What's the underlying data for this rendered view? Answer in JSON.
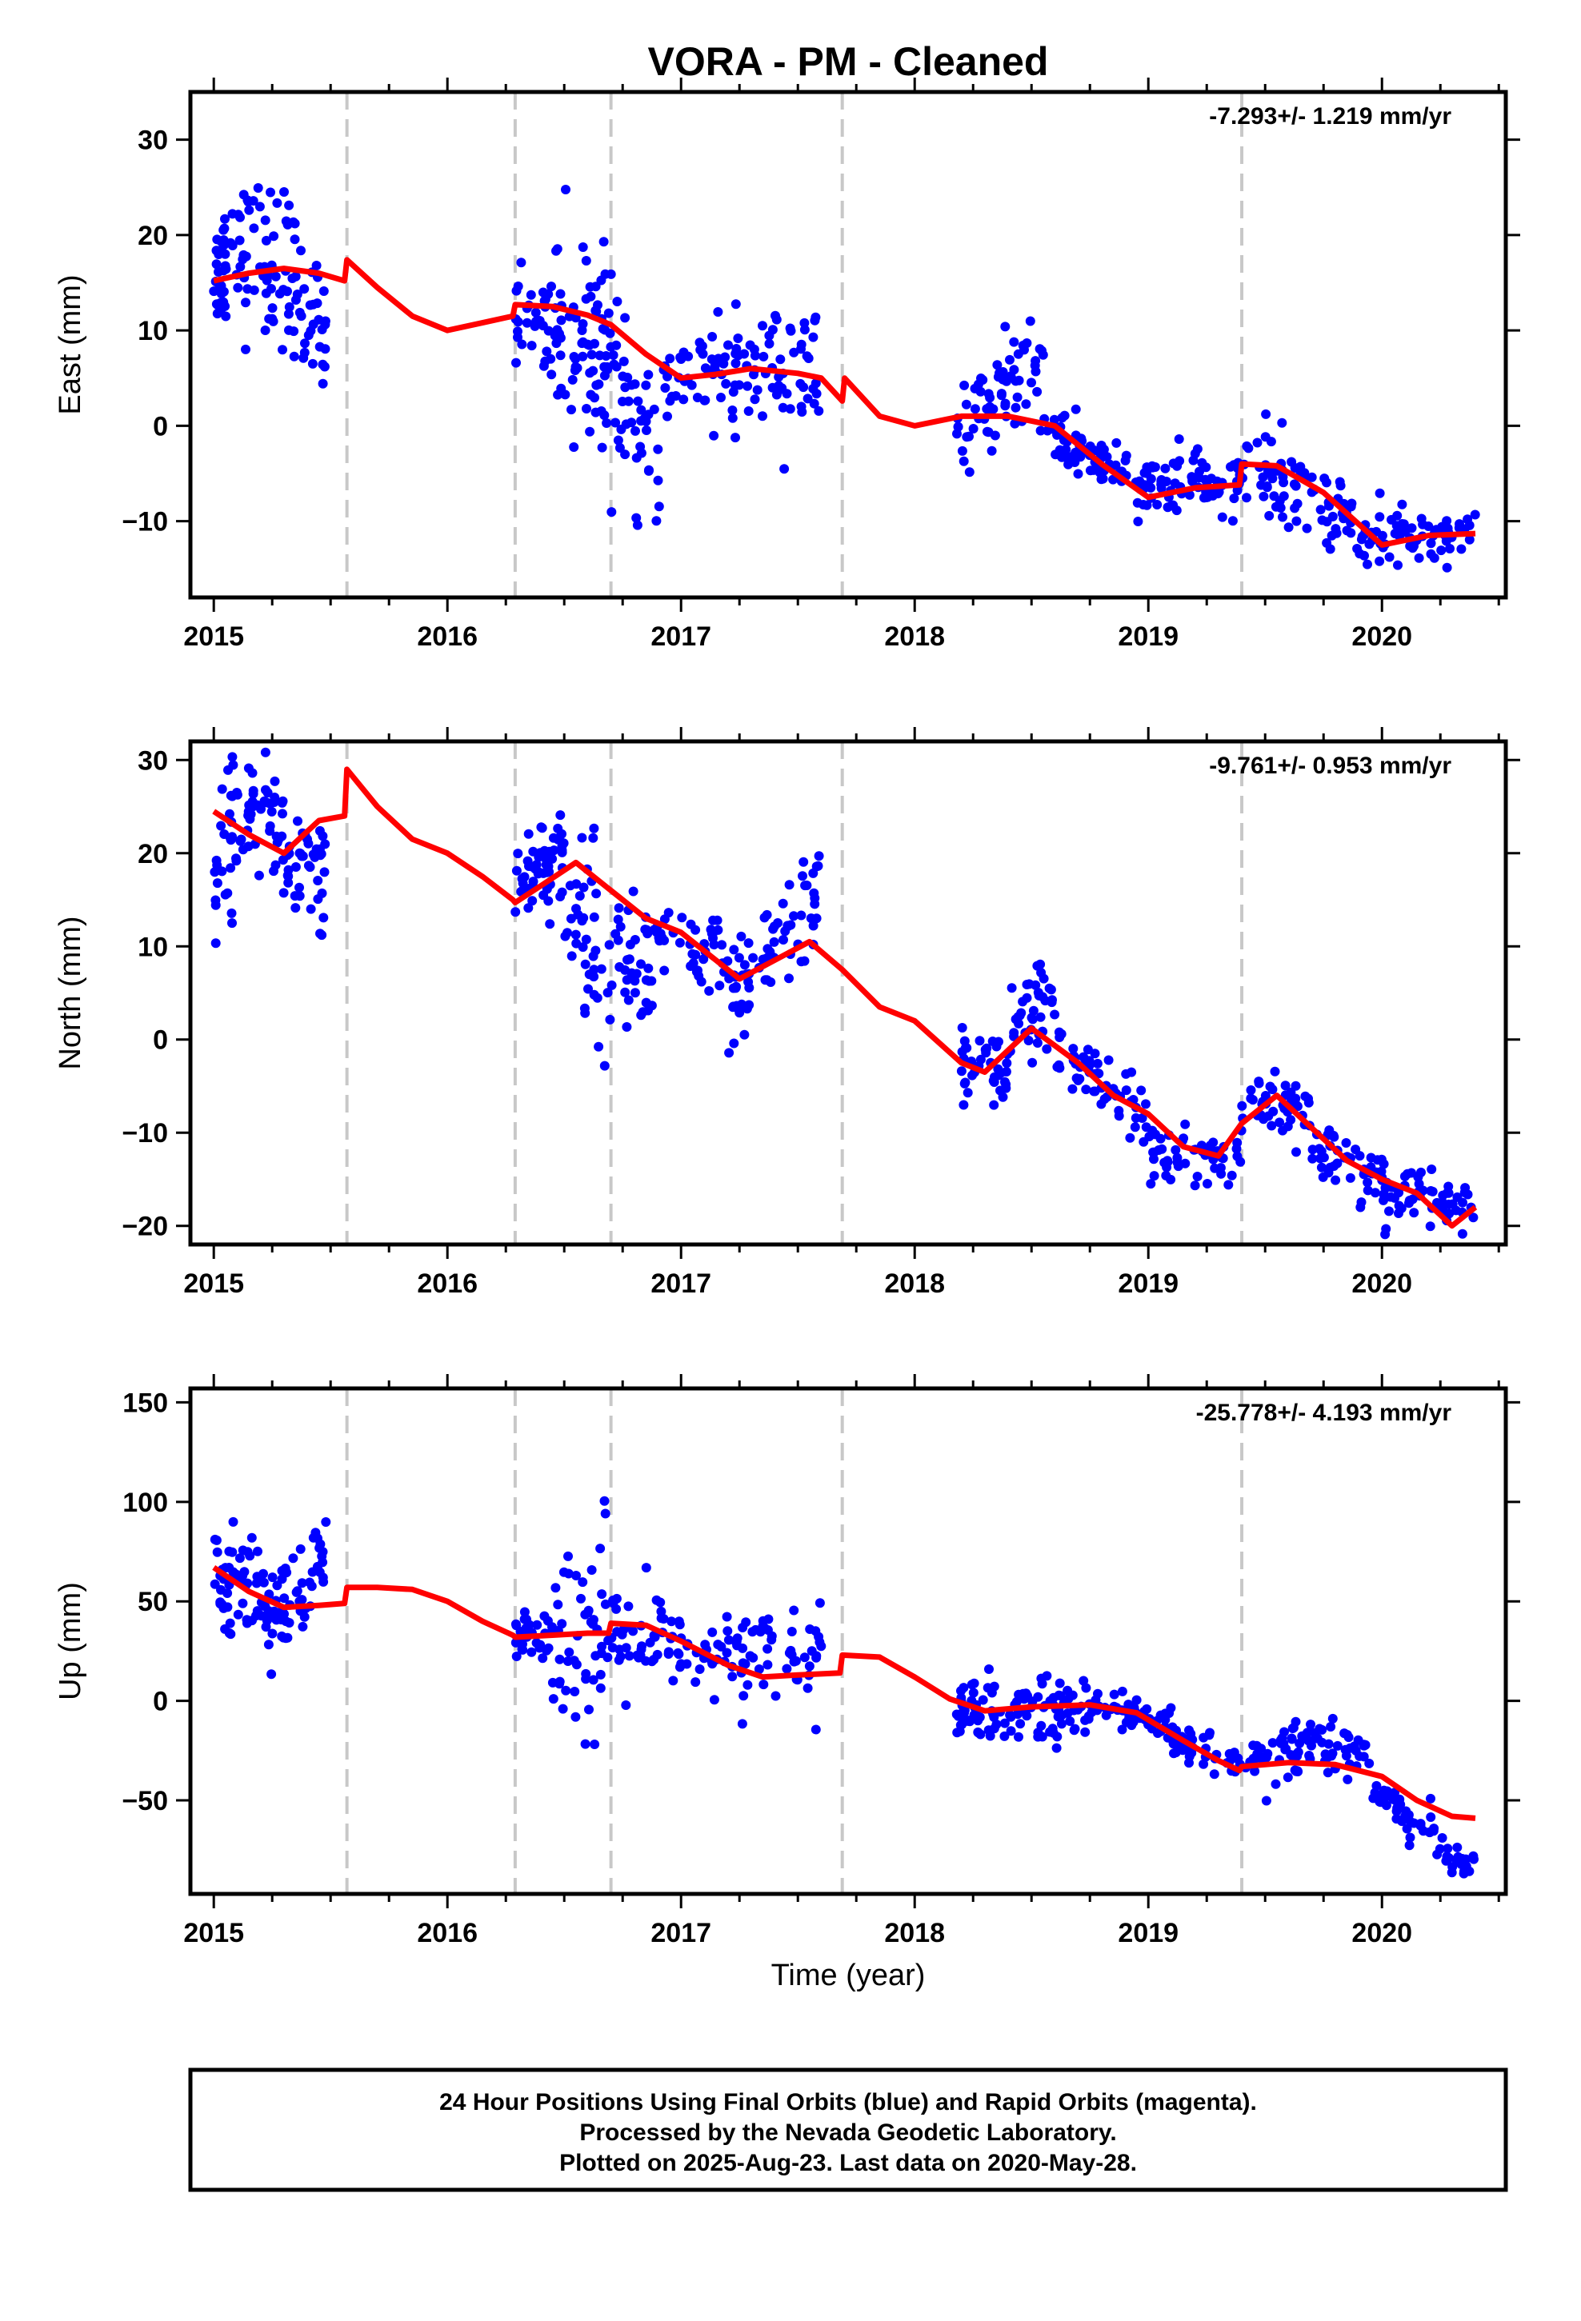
{
  "title": "VORA  - PM - Cleaned",
  "x_axis_label": "Time (year)",
  "footer": {
    "lines": [
      "24 Hour Positions Using Final Orbits (blue) and Rapid Orbits (magenta).",
      "Processed by the Nevada Geodetic Laboratory.",
      "Plotted on 2025-Aug-23. Last data on 2020-May-28."
    ]
  },
  "colors": {
    "observations": "#0000ff",
    "model": "#ff0000",
    "break_lines": "#c8c8c8",
    "frame": "#000000"
  },
  "chart_data": [
    {
      "type": "scatter",
      "component": "East",
      "ylabel": "East (mm)",
      "rate_text": "-7.293+/- 1.219 mm/yr",
      "xlim": [
        2014.9,
        2020.53
      ],
      "ylim": [
        -18,
        35
      ],
      "xticks": [
        2015,
        2016,
        2017,
        2018,
        2019,
        2020
      ],
      "yticks": [
        -10,
        0,
        10,
        20,
        30
      ],
      "break_lines": [
        2015.57,
        2016.29,
        2016.7,
        2017.69,
        2019.4
      ],
      "grid": false,
      "model_line": [
        [
          2015.0,
          15.2
        ],
        [
          2015.15,
          16.0
        ],
        [
          2015.3,
          16.5
        ],
        [
          2015.45,
          16.0
        ],
        [
          2015.56,
          15.2
        ],
        [
          2015.57,
          17.4
        ],
        [
          2015.7,
          14.5
        ],
        [
          2015.85,
          11.5
        ],
        [
          2016.0,
          10.0
        ],
        [
          2016.15,
          10.8
        ],
        [
          2016.28,
          11.5
        ],
        [
          2016.29,
          12.7
        ],
        [
          2016.45,
          12.5
        ],
        [
          2016.6,
          11.6
        ],
        [
          2016.7,
          10.6
        ],
        [
          2016.85,
          7.5
        ],
        [
          2017.0,
          5.0
        ],
        [
          2017.15,
          5.4
        ],
        [
          2017.3,
          6.0
        ],
        [
          2017.5,
          5.5
        ],
        [
          2017.6,
          5.0
        ],
        [
          2017.69,
          2.6
        ],
        [
          2017.7,
          5.0
        ],
        [
          2017.85,
          1.0
        ],
        [
          2018.0,
          0.0
        ],
        [
          2018.2,
          1.0
        ],
        [
          2018.4,
          1.0
        ],
        [
          2018.6,
          0.0
        ],
        [
          2018.8,
          -4.0
        ],
        [
          2019.0,
          -7.5
        ],
        [
          2019.2,
          -6.5
        ],
        [
          2019.39,
          -6.2
        ],
        [
          2019.4,
          -4.0
        ],
        [
          2019.55,
          -4.2
        ],
        [
          2019.75,
          -7.0
        ],
        [
          2020.0,
          -12.5
        ],
        [
          2020.2,
          -11.5
        ],
        [
          2020.4,
          -11.3
        ]
      ],
      "point_clusters": [
        {
          "x": [
            2015.0,
            2015.05
          ],
          "center": [
            15,
            18
          ],
          "spread": 3,
          "n": 30
        },
        {
          "x": [
            2015.05,
            2015.3
          ],
          "center": [
            18,
            17
          ],
          "spread": 4,
          "n": 50
        },
        {
          "x": [
            2015.3,
            2015.48
          ],
          "center": [
            15,
            10
          ],
          "spread": 4.5,
          "n": 45
        },
        {
          "x": [
            2016.29,
            2016.7
          ],
          "center": [
            12,
            9
          ],
          "spread": 3.5,
          "n": 80
        },
        {
          "x": [
            2016.45,
            2016.7
          ],
          "center": [
            10,
            5
          ],
          "spread": 6,
          "n": 25
        },
        {
          "x": [
            2016.7,
            2016.92
          ],
          "center": [
            5,
            -5
          ],
          "spread": 4,
          "n": 45
        },
        {
          "x": [
            2016.92,
            2017.2
          ],
          "center": [
            5,
            5
          ],
          "spread": 2.5,
          "n": 40
        },
        {
          "x": [
            2017.2,
            2017.6
          ],
          "center": [
            5,
            6
          ],
          "spread": 3.5,
          "n": 70
        },
        {
          "x": [
            2018.18,
            2018.35
          ],
          "center": [
            -1,
            2
          ],
          "spread": 2,
          "n": 30
        },
        {
          "x": [
            2018.35,
            2018.55
          ],
          "center": [
            4,
            6
          ],
          "spread": 2.5,
          "n": 40
        },
        {
          "x": [
            2018.55,
            2018.75
          ],
          "center": [
            0,
            -3
          ],
          "spread": 2,
          "n": 35
        },
        {
          "x": [
            2018.75,
            2019.1
          ],
          "center": [
            -4,
            -7
          ],
          "spread": 1.5,
          "n": 60
        },
        {
          "x": [
            2019.1,
            2019.4
          ],
          "center": [
            -6,
            -6
          ],
          "spread": 1.5,
          "n": 50
        },
        {
          "x": [
            2019.4,
            2019.6
          ],
          "center": [
            -4,
            -6
          ],
          "spread": 2.5,
          "n": 35
        },
        {
          "x": [
            2019.6,
            2019.9
          ],
          "center": [
            -7,
            -10
          ],
          "spread": 2,
          "n": 45
        },
        {
          "x": [
            2019.9,
            2020.4
          ],
          "center": [
            -12,
            -11
          ],
          "spread": 1.5,
          "n": 70
        }
      ]
    },
    {
      "type": "scatter",
      "component": "North",
      "ylabel": "North (mm)",
      "rate_text": "-9.761+/- 0.953 mm/yr",
      "xlim": [
        2014.9,
        2020.53
      ],
      "ylim": [
        -22,
        32
      ],
      "xticks": [
        2015,
        2016,
        2017,
        2018,
        2019,
        2020
      ],
      "yticks": [
        -20,
        -10,
        0,
        10,
        20,
        30
      ],
      "break_lines": [
        2015.57,
        2016.29,
        2016.7,
        2017.69,
        2019.4
      ],
      "grid": false,
      "model_line": [
        [
          2015.0,
          24.5
        ],
        [
          2015.15,
          22.0
        ],
        [
          2015.3,
          20.0
        ],
        [
          2015.45,
          23.5
        ],
        [
          2015.56,
          24.0
        ],
        [
          2015.57,
          29.0
        ],
        [
          2015.7,
          25.0
        ],
        [
          2015.85,
          21.5
        ],
        [
          2016.0,
          20.0
        ],
        [
          2016.15,
          17.5
        ],
        [
          2016.28,
          15.0
        ],
        [
          2016.29,
          14.7
        ],
        [
          2016.4,
          16.5
        ],
        [
          2016.55,
          19.0
        ],
        [
          2016.7,
          16.0
        ],
        [
          2016.85,
          13.0
        ],
        [
          2017.0,
          11.5
        ],
        [
          2017.15,
          8.5
        ],
        [
          2017.25,
          6.5
        ],
        [
          2017.4,
          8.5
        ],
        [
          2017.55,
          10.5
        ],
        [
          2017.69,
          7.5
        ],
        [
          2017.85,
          3.5
        ],
        [
          2018.0,
          2.0
        ],
        [
          2018.2,
          -2.5
        ],
        [
          2018.3,
          -3.5
        ],
        [
          2018.5,
          1.2
        ],
        [
          2018.7,
          -2.5
        ],
        [
          2018.85,
          -6.0
        ],
        [
          2019.0,
          -8.0
        ],
        [
          2019.15,
          -11.5
        ],
        [
          2019.3,
          -12.5
        ],
        [
          2019.4,
          -9.0
        ],
        [
          2019.55,
          -6.0
        ],
        [
          2019.7,
          -9.5
        ],
        [
          2019.85,
          -13.0
        ],
        [
          2020.0,
          -15.0
        ],
        [
          2020.15,
          -16.5
        ],
        [
          2020.3,
          -20.0
        ],
        [
          2020.4,
          -18.0
        ]
      ],
      "point_clusters": [
        {
          "x": [
            2015.0,
            2015.1
          ],
          "center": [
            17,
            22
          ],
          "spread": 4,
          "n": 30
        },
        {
          "x": [
            2015.1,
            2015.3
          ],
          "center": [
            25,
            22
          ],
          "spread": 3,
          "n": 45
        },
        {
          "x": [
            2015.3,
            2015.48
          ],
          "center": [
            20,
            18
          ],
          "spread": 4,
          "n": 40
        },
        {
          "x": [
            2016.29,
            2016.5
          ],
          "center": [
            16,
            21
          ],
          "spread": 2.5,
          "n": 55
        },
        {
          "x": [
            2016.5,
            2016.7
          ],
          "center": [
            12,
            10
          ],
          "spread": 5,
          "n": 40
        },
        {
          "x": [
            2016.7,
            2016.9
          ],
          "center": [
            10,
            7
          ],
          "spread": 4,
          "n": 40
        },
        {
          "x": [
            2016.9,
            2017.2
          ],
          "center": [
            10,
            8
          ],
          "spread": 2.5,
          "n": 40
        },
        {
          "x": [
            2017.2,
            2017.35
          ],
          "center": [
            4,
            5
          ],
          "spread": 3,
          "n": 30
        },
        {
          "x": [
            2017.35,
            2017.6
          ],
          "center": [
            10,
            15
          ],
          "spread": 3.5,
          "n": 45
        },
        {
          "x": [
            2018.18,
            2018.4
          ],
          "center": [
            -3,
            -3
          ],
          "spread": 2,
          "n": 40
        },
        {
          "x": [
            2018.4,
            2018.6
          ],
          "center": [
            1,
            3
          ],
          "spread": 2.5,
          "n": 40
        },
        {
          "x": [
            2018.6,
            2019.0
          ],
          "center": [
            -1,
            -8
          ],
          "spread": 1.5,
          "n": 60
        },
        {
          "x": [
            2019.0,
            2019.4
          ],
          "center": [
            -12,
            -13
          ],
          "spread": 1.5,
          "n": 55
        },
        {
          "x": [
            2019.4,
            2019.7
          ],
          "center": [
            -7,
            -8
          ],
          "spread": 1.8,
          "n": 45
        },
        {
          "x": [
            2019.7,
            2020.0
          ],
          "center": [
            -12,
            -15
          ],
          "spread": 1.5,
          "n": 45
        },
        {
          "x": [
            2020.0,
            2020.4
          ],
          "center": [
            -16,
            -18
          ],
          "spread": 1.5,
          "n": 60
        }
      ]
    },
    {
      "type": "scatter",
      "component": "Up",
      "ylabel": "Up (mm)",
      "rate_text": "-25.778+/- 4.193 mm/yr",
      "xlim": [
        2014.9,
        2020.53
      ],
      "ylim": [
        -97,
        157
      ],
      "xticks": [
        2015,
        2016,
        2017,
        2018,
        2019,
        2020
      ],
      "yticks": [
        -50,
        0,
        50,
        100,
        150
      ],
      "break_lines": [
        2015.57,
        2016.29,
        2016.7,
        2017.69,
        2019.4
      ],
      "grid": false,
      "model_line": [
        [
          2015.0,
          67
        ],
        [
          2015.15,
          55
        ],
        [
          2015.3,
          47
        ],
        [
          2015.45,
          48
        ],
        [
          2015.56,
          49
        ],
        [
          2015.57,
          57
        ],
        [
          2015.7,
          57
        ],
        [
          2015.85,
          56
        ],
        [
          2016.0,
          50
        ],
        [
          2016.15,
          40
        ],
        [
          2016.28,
          33
        ],
        [
          2016.29,
          32
        ],
        [
          2016.45,
          33
        ],
        [
          2016.6,
          34
        ],
        [
          2016.69,
          34
        ],
        [
          2016.7,
          39
        ],
        [
          2016.85,
          38
        ],
        [
          2017.0,
          30
        ],
        [
          2017.2,
          18
        ],
        [
          2017.35,
          12
        ],
        [
          2017.5,
          13
        ],
        [
          2017.68,
          14
        ],
        [
          2017.69,
          23
        ],
        [
          2017.85,
          22
        ],
        [
          2018.0,
          12
        ],
        [
          2018.15,
          1
        ],
        [
          2018.3,
          -5
        ],
        [
          2018.5,
          -3
        ],
        [
          2018.75,
          -2
        ],
        [
          2018.95,
          -6
        ],
        [
          2019.15,
          -20
        ],
        [
          2019.3,
          -30
        ],
        [
          2019.39,
          -35
        ],
        [
          2019.4,
          -33
        ],
        [
          2019.6,
          -31
        ],
        [
          2019.8,
          -32
        ],
        [
          2020.0,
          -38
        ],
        [
          2020.15,
          -50
        ],
        [
          2020.3,
          -58
        ],
        [
          2020.4,
          -59
        ]
      ],
      "point_clusters": [
        {
          "x": [
            2015.0,
            2015.15
          ],
          "center": [
            65,
            62
          ],
          "spread": 14,
          "n": 40
        },
        {
          "x": [
            2015.15,
            2015.3
          ],
          "center": [
            55,
            45
          ],
          "spread": 12,
          "n": 40
        },
        {
          "x": [
            2015.3,
            2015.48
          ],
          "center": [
            48,
            62
          ],
          "spread": 14,
          "n": 40
        },
        {
          "x": [
            2016.29,
            2016.45
          ],
          "center": [
            32,
            35
          ],
          "spread": 6,
          "n": 35
        },
        {
          "x": [
            2016.45,
            2016.7
          ],
          "center": [
            40,
            35
          ],
          "spread": 25,
          "n": 50
        },
        {
          "x": [
            2016.7,
            2016.95
          ],
          "center": [
            35,
            25
          ],
          "spread": 14,
          "n": 40
        },
        {
          "x": [
            2016.95,
            2017.25
          ],
          "center": [
            22,
            20
          ],
          "spread": 10,
          "n": 40
        },
        {
          "x": [
            2017.25,
            2017.6
          ],
          "center": [
            25,
            20
          ],
          "spread": 15,
          "n": 50
        },
        {
          "x": [
            2018.18,
            2018.45
          ],
          "center": [
            -5,
            -8
          ],
          "spread": 9,
          "n": 55
        },
        {
          "x": [
            2018.45,
            2018.75
          ],
          "center": [
            -5,
            -5
          ],
          "spread": 9,
          "n": 55
        },
        {
          "x": [
            2018.75,
            2019.1
          ],
          "center": [
            -3,
            -10
          ],
          "spread": 5,
          "n": 55
        },
        {
          "x": [
            2019.1,
            2019.4
          ],
          "center": [
            -20,
            -35
          ],
          "spread": 5,
          "n": 45
        },
        {
          "x": [
            2019.4,
            2019.65
          ],
          "center": [
            -30,
            -28
          ],
          "spread": 7,
          "n": 45
        },
        {
          "x": [
            2019.65,
            2019.95
          ],
          "center": [
            -20,
            -30
          ],
          "spread": 6,
          "n": 45
        },
        {
          "x": [
            2019.95,
            2020.4
          ],
          "center": [
            -45,
            -85
          ],
          "spread": 6,
          "n": 60
        }
      ]
    }
  ]
}
